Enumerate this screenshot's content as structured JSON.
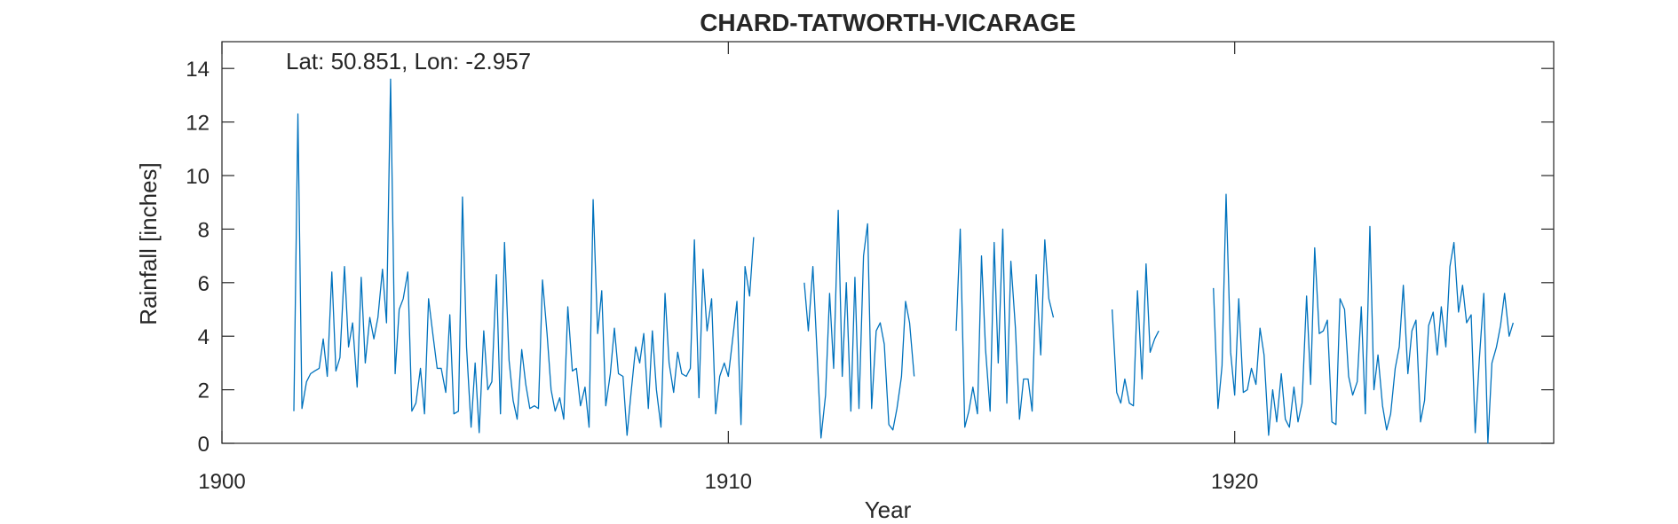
{
  "chart_data": {
    "type": "line",
    "title": "CHARD-TATWORTH-VICARAGE",
    "annotation": "Lat: 50.851, Lon: -2.957",
    "xlabel": "Year",
    "ylabel": "Rainfall [inches]",
    "xlim": [
      1900,
      1926.3
    ],
    "ylim": [
      0,
      15
    ],
    "xticks": [
      1900,
      1910,
      1920
    ],
    "yticks": [
      0,
      2,
      4,
      6,
      8,
      10,
      12,
      14
    ],
    "grid": false,
    "line_color": "#0072BD",
    "series": [
      {
        "values": [
          [
            1901.42,
            1.2
          ],
          [
            1901.5,
            12.3
          ],
          [
            1901.58,
            1.3
          ],
          [
            1901.67,
            2.3
          ],
          [
            1901.75,
            2.6
          ],
          [
            1901.83,
            2.7
          ],
          [
            1901.92,
            2.8
          ],
          [
            1902.0,
            3.9
          ],
          [
            1902.08,
            2.5
          ],
          [
            1902.17,
            6.4
          ],
          [
            1902.25,
            2.7
          ],
          [
            1902.33,
            3.2
          ],
          [
            1902.42,
            6.6
          ],
          [
            1902.5,
            3.6
          ],
          [
            1902.58,
            4.5
          ],
          [
            1902.67,
            2.1
          ],
          [
            1902.75,
            6.2
          ],
          [
            1902.83,
            3.0
          ],
          [
            1902.92,
            4.7
          ],
          [
            1903.0,
            3.9
          ],
          [
            1903.08,
            4.7
          ],
          [
            1903.17,
            6.5
          ],
          [
            1903.25,
            4.5
          ],
          [
            1903.33,
            13.6
          ],
          [
            1903.42,
            2.6
          ],
          [
            1903.5,
            5.0
          ],
          [
            1903.58,
            5.4
          ],
          [
            1903.67,
            6.4
          ],
          [
            1903.75,
            1.2
          ],
          [
            1903.83,
            1.5
          ],
          [
            1903.92,
            2.8
          ],
          [
            1904.0,
            1.1
          ],
          [
            1904.08,
            5.4
          ],
          [
            1904.17,
            4.0
          ],
          [
            1904.25,
            2.8
          ],
          [
            1904.33,
            2.8
          ],
          [
            1904.42,
            1.9
          ],
          [
            1904.5,
            4.8
          ],
          [
            1904.58,
            1.1
          ],
          [
            1904.67,
            1.2
          ],
          [
            1904.75,
            9.2
          ],
          [
            1904.83,
            3.6
          ],
          [
            1904.92,
            0.6
          ],
          [
            1905.0,
            3.0
          ],
          [
            1905.08,
            0.4
          ],
          [
            1905.17,
            4.2
          ],
          [
            1905.25,
            2.0
          ],
          [
            1905.33,
            2.3
          ],
          [
            1905.42,
            6.3
          ],
          [
            1905.5,
            1.1
          ],
          [
            1905.58,
            7.5
          ],
          [
            1905.67,
            3.1
          ],
          [
            1905.75,
            1.6
          ],
          [
            1905.83,
            0.9
          ],
          [
            1905.92,
            3.5
          ],
          [
            1906.0,
            2.2
          ],
          [
            1906.08,
            1.3
          ],
          [
            1906.17,
            1.4
          ],
          [
            1906.25,
            1.3
          ],
          [
            1906.33,
            6.1
          ],
          [
            1906.42,
            4.1
          ],
          [
            1906.5,
            2.0
          ],
          [
            1906.58,
            1.2
          ],
          [
            1906.67,
            1.7
          ],
          [
            1906.75,
            0.9
          ],
          [
            1906.83,
            5.1
          ],
          [
            1906.92,
            2.7
          ],
          [
            1907.0,
            2.8
          ],
          [
            1907.08,
            1.4
          ],
          [
            1907.17,
            2.1
          ],
          [
            1907.25,
            0.6
          ],
          [
            1907.33,
            9.1
          ],
          [
            1907.42,
            4.1
          ],
          [
            1907.5,
            5.7
          ],
          [
            1907.58,
            1.4
          ],
          [
            1907.67,
            2.6
          ],
          [
            1907.75,
            4.3
          ],
          [
            1907.83,
            2.6
          ],
          [
            1907.92,
            2.5
          ],
          [
            1908.0,
            0.3
          ],
          [
            1908.08,
            1.9
          ],
          [
            1908.17,
            3.6
          ],
          [
            1908.25,
            3.0
          ],
          [
            1908.33,
            4.1
          ],
          [
            1908.42,
            1.3
          ],
          [
            1908.5,
            4.2
          ],
          [
            1908.58,
            2.0
          ],
          [
            1908.67,
            0.6
          ],
          [
            1908.75,
            5.6
          ],
          [
            1908.83,
            3.0
          ],
          [
            1908.92,
            1.9
          ],
          [
            1909.0,
            3.4
          ],
          [
            1909.08,
            2.6
          ],
          [
            1909.17,
            2.5
          ],
          [
            1909.25,
            2.8
          ],
          [
            1909.33,
            7.6
          ],
          [
            1909.42,
            1.7
          ],
          [
            1909.5,
            6.5
          ],
          [
            1909.58,
            4.2
          ],
          [
            1909.67,
            5.4
          ],
          [
            1909.75,
            1.1
          ],
          [
            1909.83,
            2.5
          ],
          [
            1909.92,
            3.0
          ],
          [
            1910.0,
            2.5
          ],
          [
            1910.08,
            3.8
          ],
          [
            1910.17,
            5.3
          ],
          [
            1910.25,
            0.7
          ],
          [
            1910.33,
            6.6
          ],
          [
            1910.42,
            5.5
          ],
          [
            1910.5,
            7.7
          ]
        ]
      },
      {
        "values": [
          [
            1911.5,
            6.0
          ],
          [
            1911.58,
            4.2
          ],
          [
            1911.67,
            6.6
          ],
          [
            1911.75,
            3.5
          ],
          [
            1911.83,
            0.2
          ],
          [
            1911.92,
            1.8
          ],
          [
            1912.0,
            5.6
          ],
          [
            1912.08,
            2.8
          ],
          [
            1912.17,
            8.7
          ],
          [
            1912.25,
            2.5
          ],
          [
            1912.33,
            6.0
          ],
          [
            1912.42,
            1.2
          ],
          [
            1912.5,
            6.2
          ],
          [
            1912.58,
            1.3
          ],
          [
            1912.67,
            7.0
          ],
          [
            1912.75,
            8.2
          ],
          [
            1912.83,
            1.3
          ],
          [
            1912.92,
            4.2
          ],
          [
            1913.0,
            4.5
          ],
          [
            1913.08,
            3.7
          ],
          [
            1913.17,
            0.7
          ],
          [
            1913.25,
            0.5
          ],
          [
            1913.33,
            1.3
          ],
          [
            1913.42,
            2.5
          ],
          [
            1913.5,
            5.3
          ],
          [
            1913.58,
            4.5
          ],
          [
            1913.67,
            2.5
          ]
        ]
      },
      {
        "values": [
          [
            1914.5,
            4.2
          ],
          [
            1914.58,
            8.0
          ],
          [
            1914.67,
            0.6
          ],
          [
            1914.75,
            1.2
          ],
          [
            1914.83,
            2.1
          ],
          [
            1914.92,
            1.1
          ],
          [
            1915.0,
            7.0
          ],
          [
            1915.08,
            3.5
          ],
          [
            1915.17,
            1.2
          ],
          [
            1915.25,
            7.5
          ],
          [
            1915.33,
            3.0
          ],
          [
            1915.42,
            8.0
          ],
          [
            1915.5,
            1.5
          ],
          [
            1915.58,
            6.8
          ],
          [
            1915.67,
            4.3
          ],
          [
            1915.75,
            0.9
          ],
          [
            1915.83,
            2.4
          ],
          [
            1915.92,
            2.4
          ],
          [
            1916.0,
            1.2
          ],
          [
            1916.08,
            6.3
          ],
          [
            1916.17,
            3.3
          ],
          [
            1916.25,
            7.6
          ],
          [
            1916.33,
            5.4
          ],
          [
            1916.42,
            4.7
          ]
        ]
      },
      {
        "values": [
          [
            1917.58,
            5.0
          ],
          [
            1917.67,
            1.9
          ],
          [
            1917.75,
            1.5
          ],
          [
            1917.83,
            2.4
          ],
          [
            1917.92,
            1.5
          ],
          [
            1918.0,
            1.4
          ],
          [
            1918.08,
            5.7
          ],
          [
            1918.17,
            2.4
          ],
          [
            1918.25,
            6.7
          ],
          [
            1918.33,
            3.4
          ],
          [
            1918.42,
            3.9
          ],
          [
            1918.5,
            4.2
          ]
        ]
      },
      {
        "values": [
          [
            1919.58,
            5.8
          ],
          [
            1919.67,
            1.3
          ],
          [
            1919.75,
            2.9
          ],
          [
            1919.83,
            9.3
          ],
          [
            1919.92,
            3.4
          ],
          [
            1920.0,
            1.8
          ],
          [
            1920.08,
            5.4
          ],
          [
            1920.17,
            1.9
          ],
          [
            1920.25,
            2.0
          ],
          [
            1920.33,
            2.8
          ],
          [
            1920.42,
            2.2
          ],
          [
            1920.5,
            4.3
          ],
          [
            1920.58,
            3.3
          ],
          [
            1920.67,
            0.3
          ],
          [
            1920.75,
            2.0
          ],
          [
            1920.83,
            0.8
          ],
          [
            1920.92,
            2.6
          ],
          [
            1921.0,
            0.9
          ],
          [
            1921.08,
            0.6
          ],
          [
            1921.17,
            2.1
          ],
          [
            1921.25,
            0.8
          ],
          [
            1921.33,
            1.5
          ],
          [
            1921.42,
            5.5
          ],
          [
            1921.5,
            2.2
          ],
          [
            1921.58,
            7.3
          ],
          [
            1921.67,
            4.1
          ],
          [
            1921.75,
            4.2
          ],
          [
            1921.83,
            4.6
          ],
          [
            1921.92,
            0.8
          ],
          [
            1922.0,
            0.7
          ],
          [
            1922.08,
            5.4
          ],
          [
            1922.17,
            5.0
          ],
          [
            1922.25,
            2.5
          ],
          [
            1922.33,
            1.8
          ],
          [
            1922.42,
            2.3
          ],
          [
            1922.5,
            5.1
          ],
          [
            1922.58,
            1.1
          ],
          [
            1922.67,
            8.1
          ],
          [
            1922.75,
            2.0
          ],
          [
            1922.83,
            3.3
          ],
          [
            1922.92,
            1.4
          ],
          [
            1923.0,
            0.5
          ],
          [
            1923.08,
            1.1
          ],
          [
            1923.17,
            2.8
          ],
          [
            1923.25,
            3.6
          ],
          [
            1923.33,
            5.9
          ],
          [
            1923.42,
            2.6
          ],
          [
            1923.5,
            4.2
          ],
          [
            1923.58,
            4.6
          ],
          [
            1923.67,
            0.8
          ],
          [
            1923.75,
            1.6
          ],
          [
            1923.83,
            4.4
          ],
          [
            1923.92,
            4.9
          ],
          [
            1924.0,
            3.3
          ],
          [
            1924.08,
            5.1
          ],
          [
            1924.17,
            3.6
          ],
          [
            1924.25,
            6.6
          ],
          [
            1924.33,
            7.5
          ],
          [
            1924.42,
            4.9
          ],
          [
            1924.5,
            5.9
          ],
          [
            1924.58,
            4.5
          ],
          [
            1924.67,
            4.8
          ],
          [
            1924.75,
            0.4
          ],
          [
            1924.83,
            3.1
          ],
          [
            1924.92,
            5.6
          ],
          [
            1925.0,
            0.0
          ],
          [
            1925.08,
            3.0
          ],
          [
            1925.17,
            3.6
          ],
          [
            1925.25,
            4.4
          ],
          [
            1925.33,
            5.6
          ],
          [
            1925.42,
            4.0
          ],
          [
            1925.5,
            4.5
          ]
        ]
      }
    ]
  }
}
